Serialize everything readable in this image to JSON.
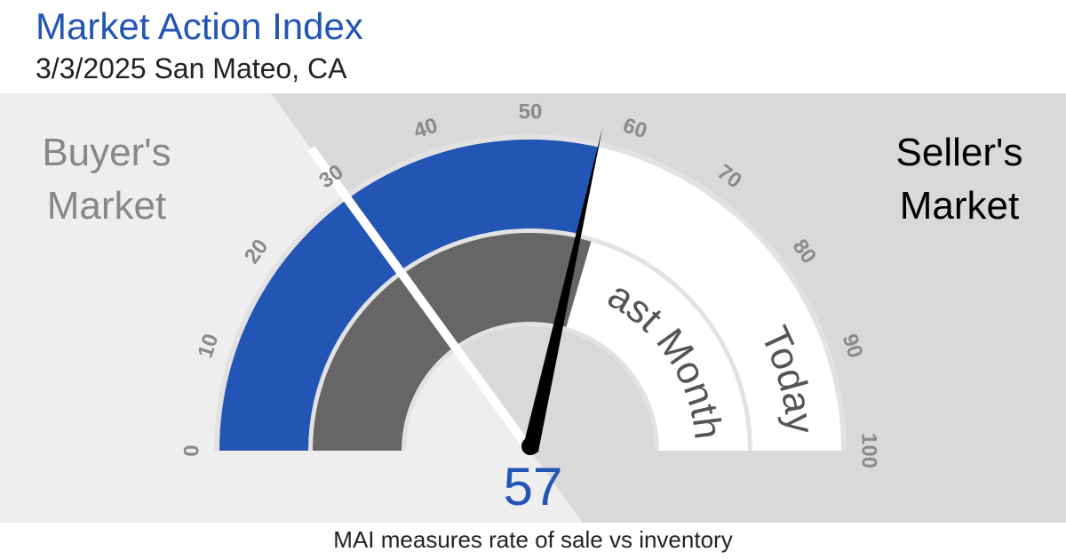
{
  "header": {
    "title": "Market Action Index",
    "subtitle": "3/3/2025 San Mateo, CA"
  },
  "chart_data": {
    "type": "gauge",
    "ylim": [
      0,
      100
    ],
    "yticks": [
      0,
      10,
      20,
      30,
      40,
      50,
      60,
      70,
      80,
      90,
      100
    ],
    "series": [
      {
        "name": "Today",
        "color": "#2255b4",
        "values": [
          57
        ]
      },
      {
        "name": "Last Month",
        "color": "#666666",
        "values": [
          59
        ]
      }
    ],
    "threshold": 30,
    "left_label": [
      "Buyer's",
      "Market"
    ],
    "right_label": [
      "Seller's",
      "Market"
    ]
  },
  "footer": "MAI measures rate of sale vs inventory"
}
